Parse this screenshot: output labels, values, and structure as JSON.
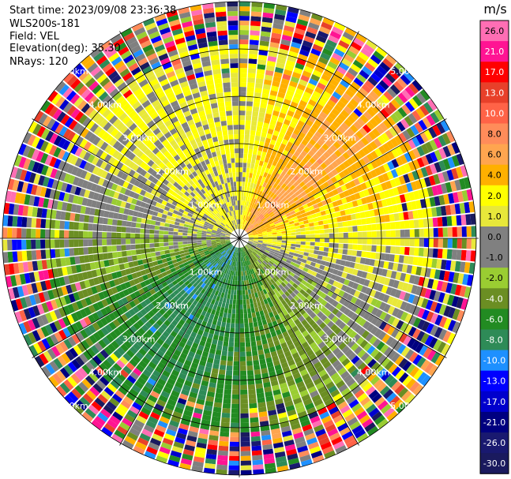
{
  "header": {
    "start_time": "Start time: 2023/09/08 23:36:38",
    "station": "WLS200s-181",
    "field": "Field: VEL",
    "elevation": "Elevation(deg): 35.30",
    "nrays": "NRays: 120"
  },
  "chart_data": {
    "type": "heatmap",
    "projection": "polar-ppi",
    "field": "VEL",
    "nrays": 120,
    "range_rings_km": [
      "1.00km",
      "2.00km",
      "3.00km",
      "4.00km",
      "5.00km"
    ],
    "ring_label_directions": [
      "NW",
      "NE",
      "SW",
      "SE"
    ],
    "colorbar": {
      "unit": "m/s",
      "ticks": [
        "26.0",
        "21.0",
        "17.0",
        "13.0",
        "10.0",
        "8.0",
        "6.0",
        "4.0",
        "2.0",
        "1.0",
        "0.0",
        "-1.0",
        "-2.0",
        "-4.0",
        "-6.0",
        "-8.0",
        "-10.0",
        "-13.0",
        "-17.0",
        "-21.0",
        "-26.0",
        "-30.0"
      ],
      "colors": [
        "#ff6eb4",
        "#ff1493",
        "#ff0000",
        "#e8402a",
        "#ff6347",
        "#ff8c5a",
        "#ffa54f",
        "#ffb000",
        "#ffff00",
        "#e8e83a",
        "#808080",
        "#808080",
        "#9acd32",
        "#6b8e23",
        "#228b22",
        "#2e8b57",
        "#1e90ff",
        "#0000ff",
        "#0000cd",
        "#000080",
        "#191970",
        "#1a1a5e"
      ]
    },
    "sectors": [
      {
        "azimuth": "N",
        "inner_value": 1.0,
        "outer_value": 2.0
      },
      {
        "azimuth": "NE",
        "inner_value": 8.0,
        "outer_value": 6.0
      },
      {
        "azimuth": "E",
        "inner_value": 2.0,
        "outer_value": 2.0
      },
      {
        "azimuth": "SE",
        "inner_value": -2.0,
        "outer_value": -1.0
      },
      {
        "azimuth": "S",
        "inner_value": -6.0,
        "outer_value": -4.0
      },
      {
        "azimuth": "SW",
        "inner_value": -8.0,
        "outer_value": -6.0
      },
      {
        "azimuth": "W",
        "inner_value": 0.0,
        "outer_value": -2.0
      },
      {
        "azimuth": "NW",
        "inner_value": 2.0,
        "outer_value": 2.0
      }
    ],
    "noise_beyond_km": 4.1
  }
}
